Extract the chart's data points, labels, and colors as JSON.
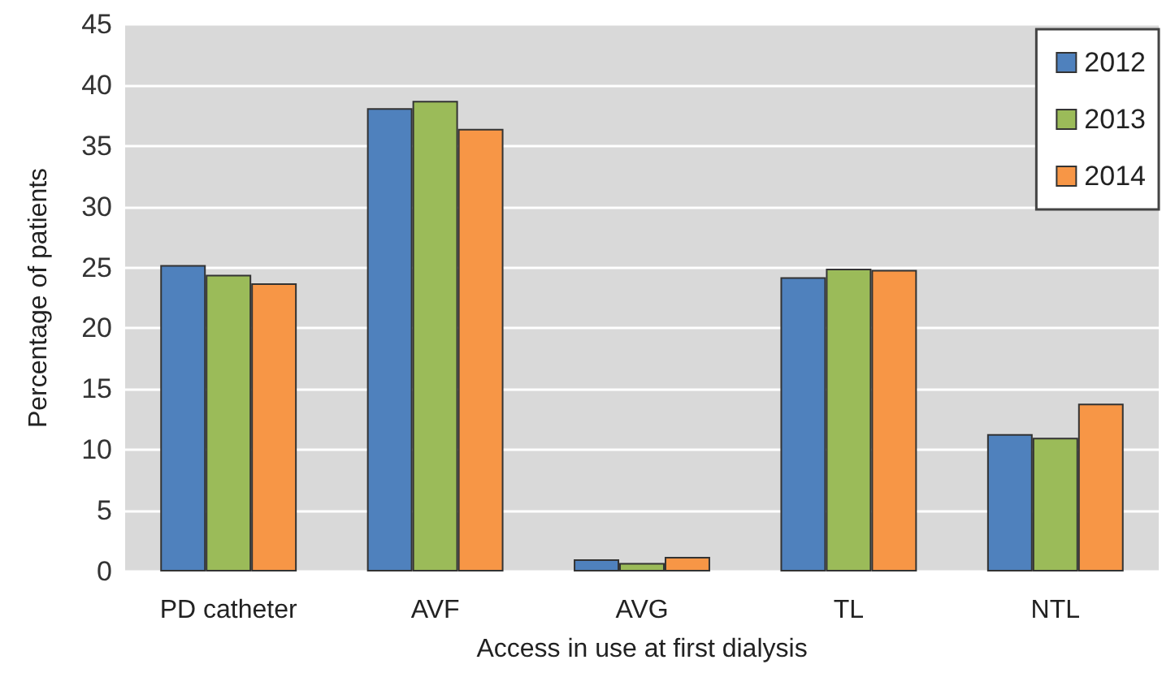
{
  "chart_data": {
    "type": "bar",
    "xlabel": "Access in use at first dialysis",
    "ylabel": "Percentage of patients",
    "categories": [
      "PD catheter",
      "AVF",
      "AVG",
      "TL",
      "NTL"
    ],
    "series": [
      {
        "name": "2012",
        "color": "#4f81bd",
        "values": [
          25.2,
          38.1,
          1.0,
          24.2,
          11.3
        ]
      },
      {
        "name": "2013",
        "color": "#9bbb59",
        "values": [
          24.4,
          38.7,
          0.7,
          24.9,
          11.0
        ]
      },
      {
        "name": "2014",
        "color": "#f79646",
        "values": [
          23.7,
          36.4,
          1.2,
          24.8,
          13.8
        ]
      }
    ],
    "ylim": [
      0,
      45
    ],
    "yticks": [
      0,
      5,
      10,
      15,
      20,
      25,
      30,
      35,
      40,
      45
    ],
    "grid": "y",
    "legend": "top right"
  }
}
